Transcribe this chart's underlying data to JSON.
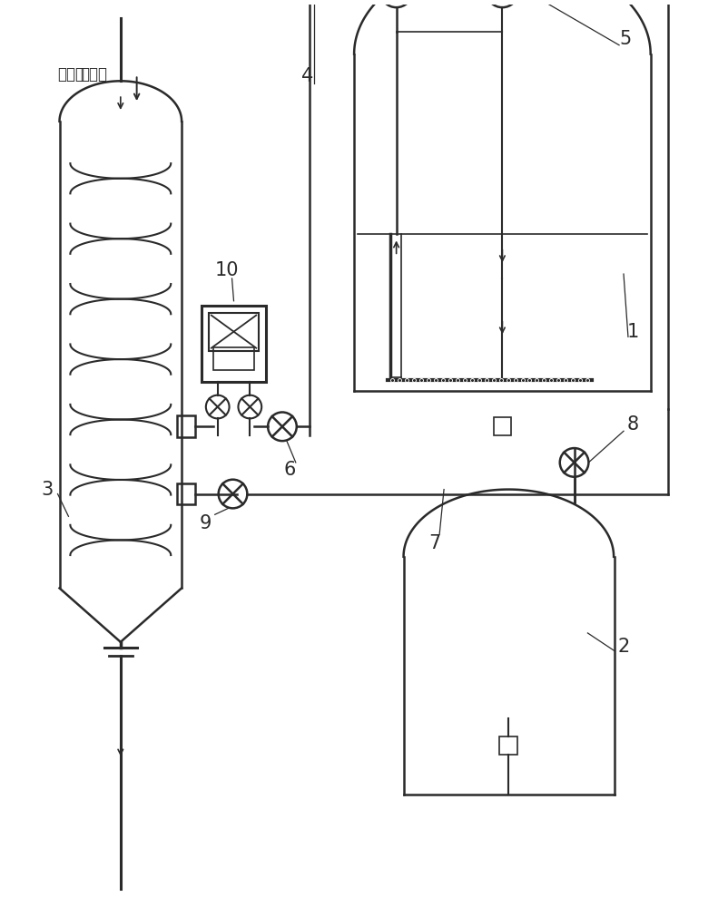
{
  "bg_color": "#ffffff",
  "line_color": "#2a2a2a",
  "lw_main": 1.8,
  "lw_thin": 1.2,
  "label_fontsize": 15,
  "chinese_fontsize": 12,
  "chinese_text": "导热油"
}
